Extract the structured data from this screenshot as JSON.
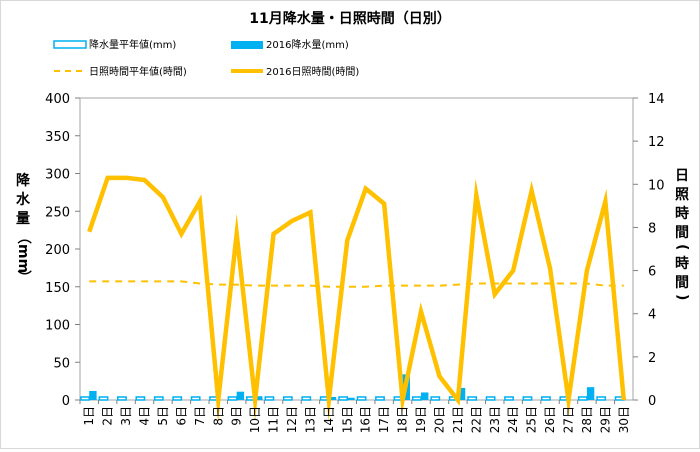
{
  "chart_data": {
    "type": "bar",
    "title": "11月降水量・日照時間（日別）",
    "ylabel_left": [
      "降",
      "水",
      "量",
      "（",
      "mm",
      "）"
    ],
    "ylabel_right": [
      "日",
      "照",
      "時",
      "間",
      "(",
      "時",
      "間",
      ")"
    ],
    "ylim_left": [
      0,
      400
    ],
    "ylim_right": [
      0,
      14
    ],
    "yticks_left": [
      0,
      50,
      100,
      150,
      200,
      250,
      300,
      350,
      400
    ],
    "yticks_right": [
      0,
      2,
      4,
      6,
      8,
      10,
      12,
      14
    ],
    "day_suffix": "日",
    "categories": [
      1,
      2,
      3,
      4,
      5,
      6,
      7,
      8,
      9,
      10,
      11,
      12,
      13,
      14,
      15,
      16,
      17,
      18,
      19,
      20,
      21,
      22,
      23,
      24,
      25,
      26,
      27,
      28,
      29,
      30
    ],
    "legend": {
      "precip_normal": "降水量平年値(mm)",
      "precip_2016": "2016降水量(mm)",
      "sun_normal": "日照時間平年値(時間)",
      "sun_2016": "2016日照時間(時間)"
    },
    "series": [
      {
        "name": "降水量平年値(mm)",
        "type": "bar",
        "axis": "left",
        "color": "#00b0f0",
        "style": "outline",
        "values": [
          4,
          4,
          4,
          4,
          4,
          4,
          4,
          4,
          4,
          4,
          4,
          4,
          4,
          4,
          4,
          4,
          4,
          4,
          4,
          4,
          4,
          4,
          4,
          4,
          4,
          4,
          4,
          4,
          4,
          4
        ]
      },
      {
        "name": "2016降水量(mm)",
        "type": "bar",
        "axis": "left",
        "color": "#00b0f0",
        "style": "filled",
        "values": [
          12,
          0,
          0,
          0,
          0,
          0,
          0,
          0,
          11,
          5,
          0,
          0,
          0,
          4,
          3,
          0,
          0,
          34,
          10,
          0,
          16,
          0,
          0,
          0,
          0,
          0,
          0,
          17,
          0,
          0
        ]
      },
      {
        "name": "日照時間平年値(時間)",
        "type": "line",
        "axis": "right",
        "color": "#ffc000",
        "style": "dashed",
        "values": [
          5.5,
          5.5,
          5.5,
          5.5,
          5.5,
          5.5,
          5.4,
          5.35,
          5.35,
          5.3,
          5.3,
          5.3,
          5.3,
          5.25,
          5.25,
          5.25,
          5.3,
          5.3,
          5.3,
          5.3,
          5.35,
          5.4,
          5.4,
          5.4,
          5.4,
          5.4,
          5.4,
          5.4,
          5.3,
          5.3
        ]
      },
      {
        "name": "2016日照時間(時間)",
        "type": "line",
        "axis": "right",
        "color": "#ffc000",
        "style": "solid",
        "values": [
          7.8,
          10.3,
          10.3,
          10.2,
          9.4,
          7.7,
          9.2,
          0,
          7.7,
          0,
          7.7,
          8.3,
          8.7,
          0,
          7.4,
          9.8,
          9.1,
          0,
          4.1,
          1.1,
          0,
          9.5,
          4.9,
          6.0,
          9.7,
          6.1,
          0,
          6.0,
          9.2,
          0
        ]
      }
    ],
    "grid": false,
    "legend_position": "top"
  }
}
